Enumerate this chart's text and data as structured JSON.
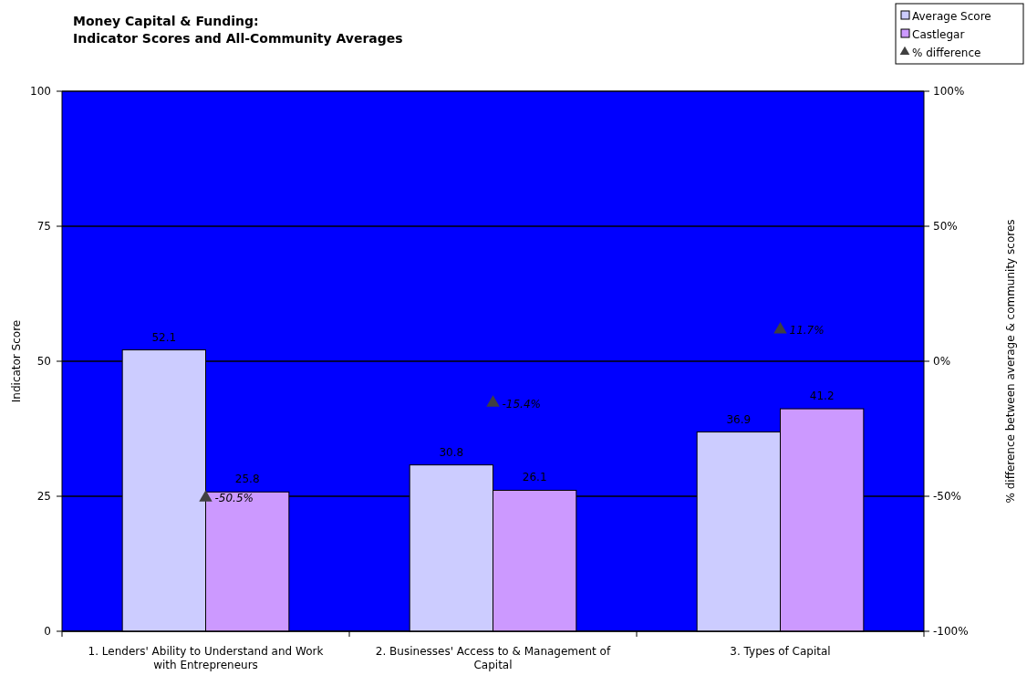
{
  "chart_data": {
    "type": "bar",
    "title": "Money Capital & Funding:\nIndicator Scores and All-Community Averages",
    "ylabel": "Indicator Score",
    "y2label": "% difference between average & community scores",
    "categories": [
      "1. Lenders' Ability to Understand and Work with Entrepreneurs",
      "2. Businesses' Access to & Management of Capital",
      "3. Types of Capital"
    ],
    "series": [
      {
        "name": "Average Score",
        "color": "#ccccff",
        "values": [
          52.1,
          30.8,
          36.9
        ]
      },
      {
        "name": "Castlegar",
        "color": "#cc99ff",
        "values": [
          25.8,
          26.1,
          41.2
        ]
      },
      {
        "name": "% difference",
        "type": "scatter",
        "axis": "y2",
        "color": "#404040",
        "marker": "triangle",
        "x": [
          "1. Lenders' Ability to Understand and Work with Entrepreneurs",
          "2. Businesses' Access to & Management of Capital",
          "3. Types of Capital"
        ],
        "values": [
          -50.5,
          -15.4,
          11.7
        ],
        "value_labels": [
          "-50.5%",
          "-15.4%",
          "11.7%"
        ]
      }
    ],
    "ylim": [
      0,
      100
    ],
    "yticks": [
      0,
      25,
      50,
      75,
      100
    ],
    "y2lim": [
      -100,
      100
    ],
    "y2ticks": [
      {
        "value": -100,
        "label": "-100%"
      },
      {
        "value": -50,
        "label": "-50%"
      },
      {
        "value": 0,
        "label": "0%"
      },
      {
        "value": 50,
        "label": "50%"
      },
      {
        "value": 100,
        "label": "100%"
      }
    ],
    "grid": "y",
    "legend": "top right",
    "data_labels": true
  }
}
